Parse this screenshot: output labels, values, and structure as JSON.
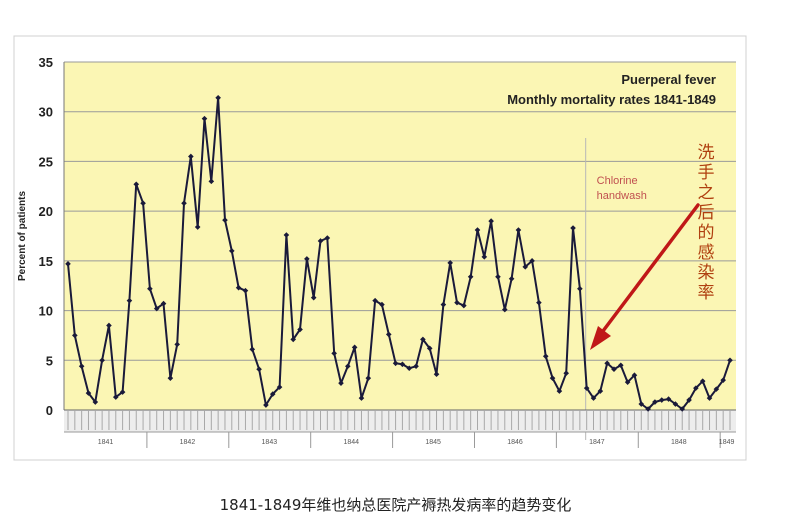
{
  "caption": "1841-1849年维也纳总医院产褥热发病率的趋势变化",
  "chart_data": {
    "type": "line",
    "title": "Puerperal fever",
    "subtitle": "Monthly mortality rates 1841-1849",
    "xlabel": "",
    "ylabel": "Percent of patients",
    "ylim": [
      0,
      35
    ],
    "yticks": [
      0,
      5,
      10,
      15,
      20,
      25,
      30,
      35
    ],
    "grid": true,
    "year_labels": [
      "1841",
      "1842",
      "1843",
      "1844",
      "1845",
      "1846",
      "1847",
      "1848",
      "1849"
    ],
    "annotation": {
      "text": "Chlorine handwash",
      "marker_index": 76
    },
    "side_note": "洗手之后的感染率",
    "colors": {
      "plot_bg": "#fbf6b4",
      "line": "#1a1a3a",
      "grid": "#9a9a9a",
      "annotation": "#c05050",
      "arrow": "#c01818",
      "side_note": "#b04010"
    },
    "series": [
      {
        "values": [
          14.7,
          7.5,
          4.4,
          1.7,
          0.8,
          5.0,
          8.5,
          1.3,
          1.8,
          11.0,
          22.7,
          20.8,
          12.2,
          10.2,
          10.7,
          3.2,
          6.6,
          20.8,
          25.5,
          18.4,
          29.3,
          23.0,
          31.4,
          19.1,
          16.0,
          12.3,
          12.0,
          6.1,
          4.1,
          0.5,
          1.6,
          2.3,
          17.6,
          7.1,
          8.1,
          15.2,
          11.3,
          17.0,
          17.3,
          5.7,
          2.7,
          4.4,
          6.3,
          1.2,
          3.2,
          11.0,
          10.6,
          7.6,
          4.7,
          4.6,
          4.2,
          4.4,
          7.1,
          6.2,
          3.6,
          10.6,
          14.8,
          10.8,
          10.5,
          13.4,
          18.1,
          15.4,
          19.0,
          13.4,
          10.1,
          13.2,
          18.1,
          14.4,
          15.0,
          10.8,
          5.4,
          3.2,
          1.9,
          3.7,
          18.3,
          12.2,
          2.2,
          1.2,
          1.9,
          4.7,
          4.1,
          4.5,
          2.8,
          3.5,
          0.6,
          0.1,
          0.8,
          1.0,
          1.1,
          0.6,
          0.1,
          1.0,
          2.2,
          2.9,
          1.2,
          2.1,
          3.0,
          5.0
        ]
      }
    ]
  }
}
